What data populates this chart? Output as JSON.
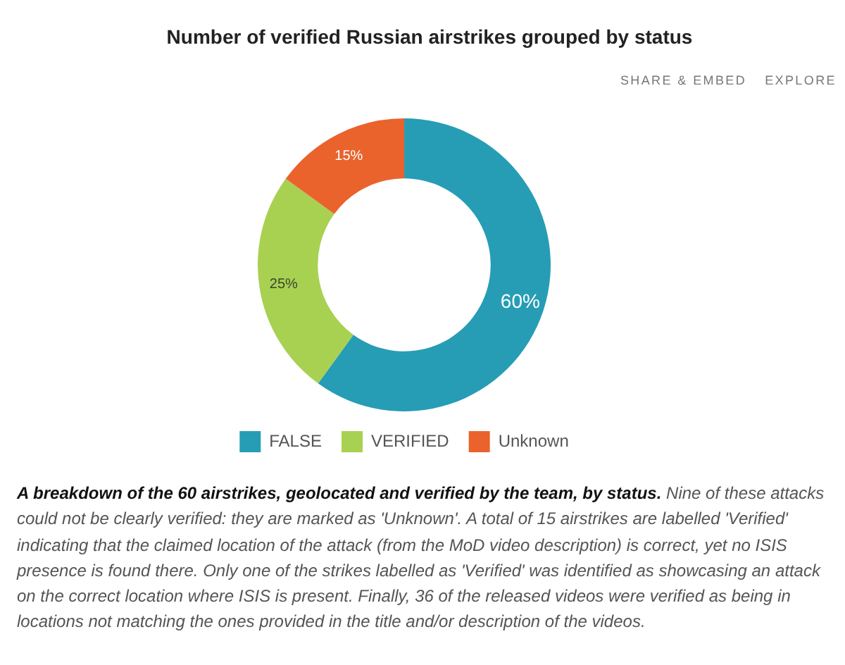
{
  "chart_data": {
    "type": "donut",
    "title": "Number of verified Russian airstrikes grouped by status",
    "categories": [
      "FALSE",
      "VERIFIED",
      "Unknown"
    ],
    "values": [
      60,
      25,
      15
    ],
    "colors": [
      "#269db5",
      "#a8d152",
      "#ea632d"
    ],
    "value_labels": [
      "60%",
      "25%",
      "15%"
    ],
    "legend": "bottom",
    "annotations": [
      "SHARE & EMBED",
      "EXPLORE",
      "A breakdown of the 60 airstrikes, geolocated and verified by the team, by status. Nine of these attacks could not be clearly verified: they are marked as 'Unknown'. A total of 15 airstrikes are labelled 'Verified' indicating that the claimed location of the attack (from the MoD video description) is correct, yet no ISIS presence is found there. Only one of the strikes labelled as 'Verified' was identified as showcasing an attack on the correct location where ISIS is present. Finally, 36 of the released videos were verified as being in locations not matching the ones provided in the title and/or description of the videos."
    ]
  }
}
